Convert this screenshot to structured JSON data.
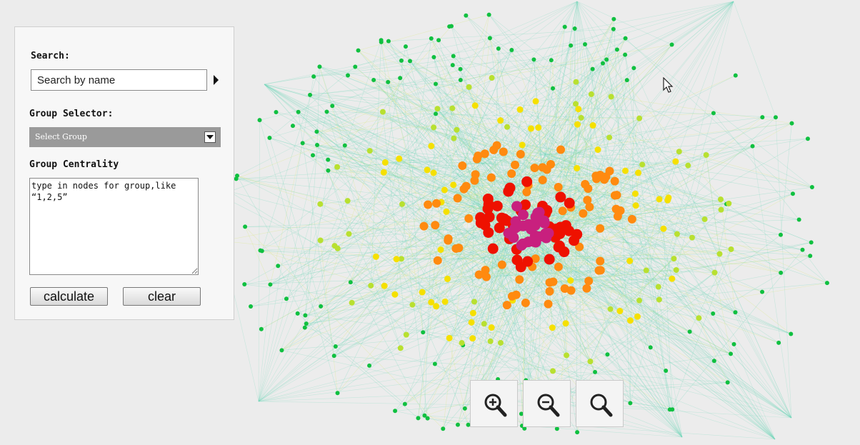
{
  "panel": {
    "search_label": "Search:",
    "search_placeholder": "Search by name",
    "group_selector_label": "Group Selector:",
    "group_select_value": "Select Group",
    "group_centrality_label": "Group Centrality",
    "group_input_text": "type in nodes for group,like “1,2,5”",
    "calculate_label": "calculate",
    "clear_label": "clear"
  },
  "zoom_controls": [
    "zoom-in-icon",
    "zoom-out-icon",
    "zoom-reset-icon"
  ],
  "colors": {
    "core": "#c8207e",
    "high": "#ee1100",
    "mid": "#ff8a10",
    "low": "#f5e000",
    "lowmid": "#b8e030",
    "periphery": "#10c040",
    "edge": "#6fd6b8"
  }
}
